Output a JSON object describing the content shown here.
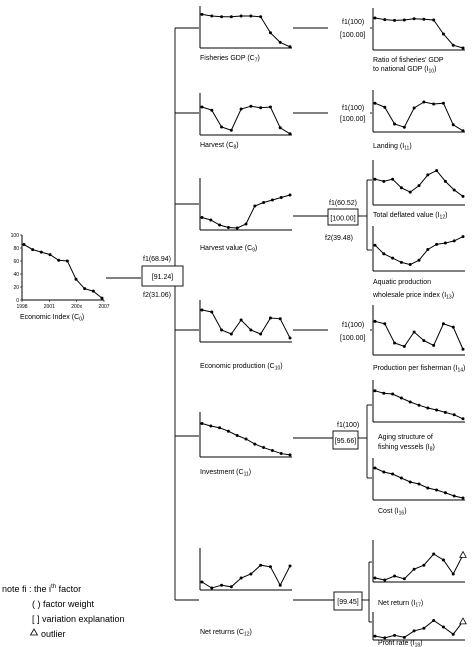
{
  "charts": [
    {
      "id": "c0",
      "label": "Economic Index",
      "sub": "0",
      "values": [
        88,
        80,
        76,
        72,
        63,
        62,
        33,
        18,
        14,
        3
      ],
      "yticks": [
        "100",
        "80",
        "60",
        "40",
        "20",
        "0"
      ],
      "xticks": [
        "1998",
        "2001",
        "200x",
        "2007"
      ]
    },
    {
      "id": "c7",
      "label": "Fisheries GDP",
      "sub": "7",
      "values": [
        84,
        80,
        78,
        78,
        80,
        80,
        78,
        38,
        14,
        3
      ]
    },
    {
      "id": "c8",
      "label": "Harvest",
      "sub": "8",
      "values": [
        70,
        62,
        20,
        12,
        65,
        72,
        68,
        70,
        18,
        3
      ]
    },
    {
      "id": "c9",
      "label": "Harvest value",
      "sub": "9",
      "values": [
        25,
        20,
        10,
        5,
        4,
        12,
        48,
        55,
        60,
        65,
        70
      ]
    },
    {
      "id": "c10",
      "label": "Economic production",
      "sub": "10",
      "values": [
        80,
        75,
        30,
        20,
        55,
        30,
        20,
        60,
        58,
        10
      ]
    },
    {
      "id": "c11",
      "label": "Investment",
      "sub": "11",
      "values": [
        78,
        72,
        68,
        60,
        50,
        42,
        30,
        22,
        15,
        8,
        5
      ]
    },
    {
      "id": "c12",
      "label": "Net returns",
      "sub": "12",
      "values": [
        20,
        5,
        12,
        8,
        30,
        40,
        62,
        58,
        12,
        60
      ]
    },
    {
      "id": "i10",
      "label": "Ratio of fisheries' GDP to national GDP",
      "sub": "10",
      "values": [
        80,
        76,
        74,
        75,
        78,
        77,
        75,
        40,
        12,
        5
      ]
    },
    {
      "id": "i11",
      "label": "Landing",
      "sub": "11",
      "values": [
        72,
        62,
        20,
        12,
        60,
        75,
        70,
        72,
        18,
        3
      ]
    },
    {
      "id": "i12",
      "label": "Total deflated value",
      "sub": "12",
      "values": [
        60,
        55,
        60,
        40,
        30,
        45,
        70,
        80,
        55,
        35,
        20
      ]
    },
    {
      "id": "i13",
      "label": "Aquatic production wholesale price index",
      "sub": "13",
      "values": [
        60,
        40,
        30,
        20,
        15,
        25,
        50,
        62,
        65,
        70,
        80
      ]
    },
    {
      "id": "i14",
      "label": "Production per fisherman",
      "sub": "14",
      "values": [
        70,
        65,
        25,
        18,
        48,
        30,
        20,
        65,
        58,
        12
      ]
    },
    {
      "id": "i8",
      "label": "Aging structure of fishing vessels",
      "sub": "8",
      "values": [
        78,
        72,
        70,
        60,
        50,
        42,
        35,
        30,
        24,
        18,
        8
      ]
    },
    {
      "id": "i16",
      "label": "Cost",
      "sub": "16",
      "values": [
        80,
        70,
        65,
        55,
        45,
        40,
        30,
        25,
        18,
        10,
        5
      ]
    },
    {
      "id": "i17",
      "label": "Net return",
      "sub": "17",
      "values": [
        10,
        5,
        15,
        8,
        32,
        42,
        70,
        55,
        20,
        68
      ],
      "outlier": true
    },
    {
      "id": "i18",
      "label": "Profit rate",
      "sub": "18",
      "values": [
        15,
        8,
        18,
        10,
        35,
        45,
        75,
        50,
        22,
        72
      ],
      "outlier": true
    }
  ],
  "boxes": {
    "root": {
      "f1": "f1(68.94)",
      "var": "[91.24]",
      "f2": "f2(31.06)"
    },
    "c7": {
      "f1": "f1(100)",
      "var": "[100.00]"
    },
    "c8": {
      "f1": "f1(100)",
      "var": "[100.00]"
    },
    "c9": {
      "f1": "f1(60.52)",
      "var": "[100.00]",
      "f2": "f2(39.48)"
    },
    "c10": {
      "f1": "f1(100)",
      "var": "[100.00]"
    },
    "c11": {
      "f1": "f1(100)",
      "var": "[95.66]"
    },
    "c12": {
      "var": "[99.45]"
    }
  },
  "legend": {
    "note": "note",
    "fi": "fi : the i",
    "fi_sup": "th",
    "fi_end": " factor",
    "weight": "( ) factor weight",
    "variation": "[ ] variation explanation",
    "outlier": "outlier",
    "outlier_icon": "triangle-outline"
  }
}
